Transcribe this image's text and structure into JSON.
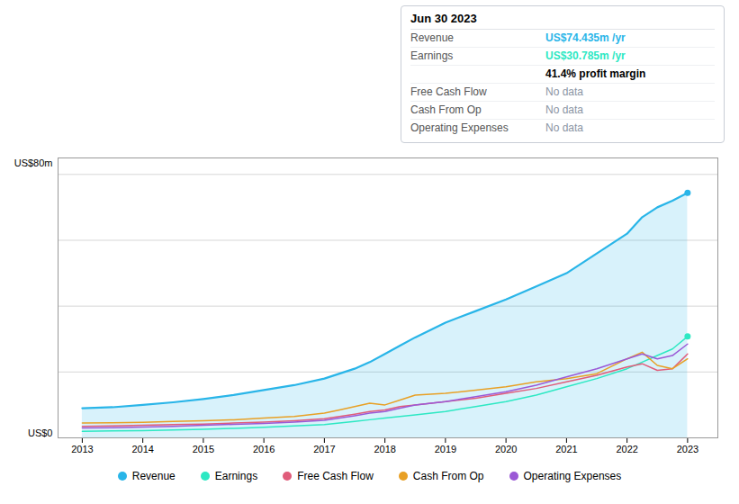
{
  "chart_data": {
    "type": "line",
    "title": "Jun 30 2023",
    "x": [
      2013,
      2013.5,
      2014,
      2014.5,
      2015,
      2015.5,
      2016,
      2016.5,
      2017,
      2017.25,
      2017.5,
      2017.75,
      2018,
      2018.25,
      2018.5,
      2019,
      2019.5,
      2020,
      2020.5,
      2021,
      2021.5,
      2022,
      2022.25,
      2022.5,
      2022.75,
      2023
    ],
    "series": [
      {
        "name": "Revenue",
        "color": "#29b5e8",
        "type": "area",
        "marker": "end",
        "values": [
          9.0,
          9.3,
          10.0,
          10.8,
          11.8,
          13.0,
          14.5,
          16.0,
          18.0,
          19.5,
          21.0,
          23.0,
          25.5,
          28.0,
          30.5,
          35.0,
          38.5,
          42.0,
          46.0,
          50.0,
          56.0,
          62.0,
          67.0,
          70.0,
          72.0,
          74.4
        ]
      },
      {
        "name": "Earnings",
        "color": "#2de8c3",
        "type": "line",
        "marker": "end",
        "values": [
          2.0,
          2.1,
          2.2,
          2.4,
          2.6,
          2.9,
          3.2,
          3.6,
          4.0,
          4.5,
          5.0,
          5.5,
          6.0,
          6.5,
          7.0,
          8.0,
          9.5,
          11.0,
          13.0,
          15.5,
          18.0,
          21.0,
          23.0,
          25.0,
          27.0,
          30.8
        ]
      },
      {
        "name": "Free Cash Flow",
        "color": "#e05c7a",
        "type": "line",
        "values": [
          3.5,
          3.6,
          3.8,
          4.0,
          4.2,
          4.5,
          4.8,
          5.2,
          5.8,
          6.5,
          7.2,
          8.0,
          8.5,
          9.5,
          10.0,
          11.0,
          12.0,
          13.5,
          15.0,
          17.0,
          19.0,
          21.5,
          22.5,
          20.5,
          21.0,
          25.5
        ]
      },
      {
        "name": "Cash From Op",
        "color": "#e8a025",
        "type": "line",
        "values": [
          4.5,
          4.6,
          4.7,
          5.0,
          5.2,
          5.5,
          6.0,
          6.5,
          7.5,
          8.5,
          9.5,
          10.5,
          10.0,
          11.5,
          13.0,
          13.5,
          14.5,
          15.5,
          17.0,
          18.0,
          19.5,
          24.0,
          26.0,
          22.0,
          21.0,
          24.0
        ]
      },
      {
        "name": "Operating Expenses",
        "color": "#9b59d6",
        "type": "line",
        "values": [
          3.0,
          3.1,
          3.3,
          3.5,
          3.8,
          4.1,
          4.4,
          4.8,
          5.3,
          6.0,
          6.7,
          7.5,
          8.0,
          9.0,
          10.0,
          11.0,
          12.5,
          14.0,
          16.0,
          18.5,
          21.0,
          24.0,
          25.5,
          24.0,
          25.0,
          28.5
        ]
      }
    ],
    "xlim": [
      2012.6,
      2023.5
    ],
    "xticks": [
      2013,
      2014,
      2015,
      2016,
      2017,
      2018,
      2019,
      2020,
      2021,
      2022,
      2023
    ],
    "ylim": [
      0,
      85
    ],
    "yticks": [
      20,
      40,
      60,
      80
    ],
    "grid": true,
    "tick_labels": "x",
    "legend": "bottom",
    "annotations": [
      "US$80m",
      "US$0"
    ],
    "tooltip": {
      "rows": [
        {
          "label": "Revenue",
          "value": "US$74.435m /yr",
          "color": "#29b5e8"
        },
        {
          "label": "Earnings",
          "value": "US$30.785m /yr",
          "color": "#2de8c3"
        },
        {
          "value": "41.4% profit margin"
        },
        {
          "label": "Free Cash Flow",
          "value": "No data"
        },
        {
          "label": "Cash From Op",
          "value": "No data"
        },
        {
          "label": "Operating Expenses",
          "value": "No data"
        }
      ]
    }
  }
}
